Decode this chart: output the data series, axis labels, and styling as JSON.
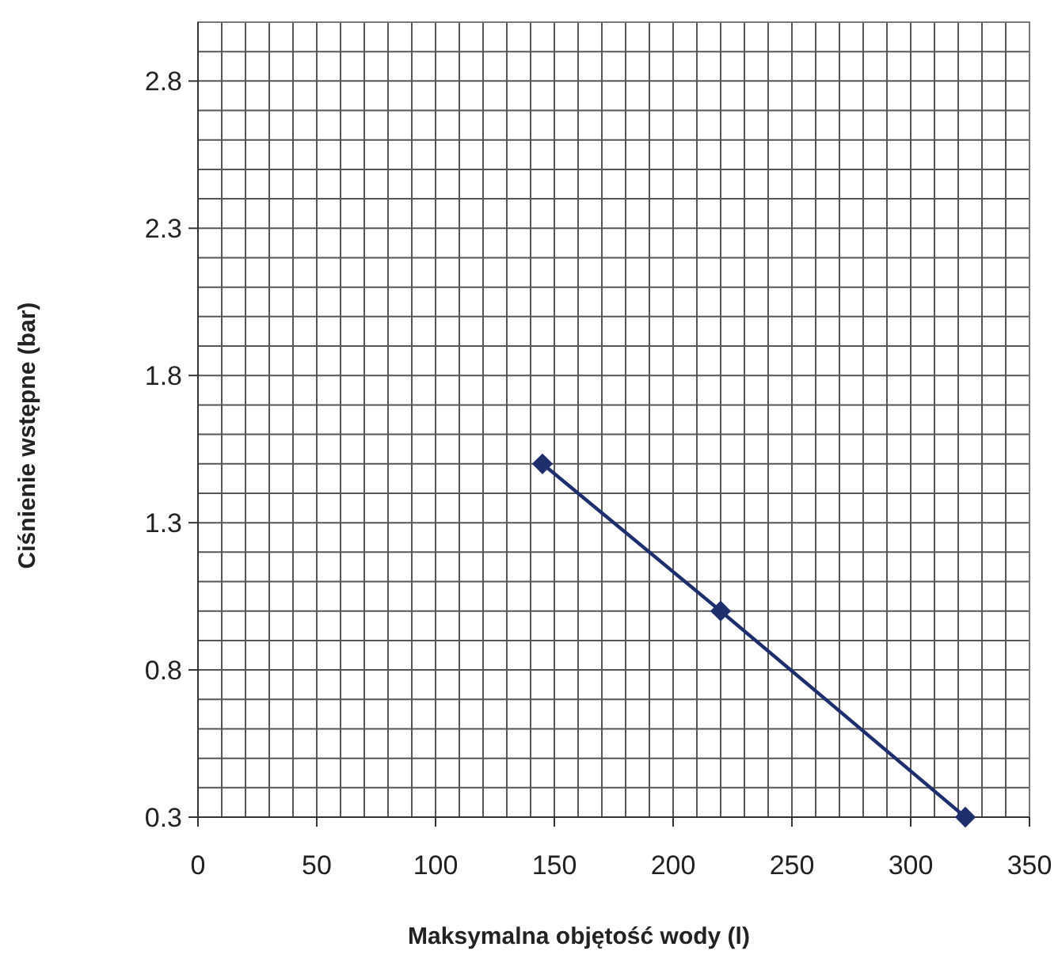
{
  "chart_data": {
    "type": "line",
    "xlabel": "Maksymalna objętość wody (l)",
    "ylabel": "Ciśnienie wstępne (bar)",
    "x": [
      145,
      220,
      323
    ],
    "series": [
      {
        "color": "#1f2f6e",
        "values": [
          1.5,
          1.0,
          0.3
        ]
      }
    ],
    "xlim": [
      0,
      350
    ],
    "xticks": [
      0,
      {
        "value": 10,
        "label": null
      },
      {
        "value": 20,
        "label": null
      },
      {
        "value": 30,
        "label": null
      },
      {
        "value": 40,
        "label": null
      },
      50,
      {
        "value": 60,
        "label": null
      },
      {
        "value": 70,
        "label": null
      },
      {
        "value": 80,
        "label": null
      },
      {
        "value": 90,
        "label": null
      },
      100,
      {
        "value": 110,
        "label": null
      },
      {
        "value": 120,
        "label": null
      },
      {
        "value": 130,
        "label": null
      },
      {
        "value": 140,
        "label": null
      },
      150,
      {
        "value": 160,
        "label": null
      },
      {
        "value": 170,
        "label": null
      },
      {
        "value": 180,
        "label": null
      },
      {
        "value": 190,
        "label": null
      },
      200,
      {
        "value": 210,
        "label": null
      },
      {
        "value": 220,
        "label": null
      },
      {
        "value": 230,
        "label": null
      },
      {
        "value": 240,
        "label": null
      },
      250,
      {
        "value": 260,
        "label": null
      },
      {
        "value": 270,
        "label": null
      },
      {
        "value": 280,
        "label": null
      },
      {
        "value": 290,
        "label": null
      },
      300,
      {
        "value": 310,
        "label": null
      },
      {
        "value": 320,
        "label": null
      },
      {
        "value": 330,
        "label": null
      },
      {
        "value": 340,
        "label": null
      },
      350
    ],
    "ylim": [
      0.3,
      3.0
    ],
    "yticks": [
      0.3,
      {
        "value": 0.4,
        "label": null
      },
      {
        "value": 0.5,
        "label": null
      },
      {
        "value": 0.6,
        "label": null
      },
      {
        "value": 0.7,
        "label": null
      },
      0.8,
      {
        "value": 0.9,
        "label": null
      },
      {
        "value": 1.0,
        "label": null
      },
      {
        "value": 1.1,
        "label": null
      },
      {
        "value": 1.2,
        "label": null
      },
      1.3,
      {
        "value": 1.4,
        "label": null
      },
      {
        "value": 1.5,
        "label": null
      },
      {
        "value": 1.6,
        "label": null
      },
      {
        "value": 1.7,
        "label": null
      },
      1.8,
      {
        "value": 1.9,
        "label": null
      },
      {
        "value": 2.0,
        "label": null
      },
      {
        "value": 2.1,
        "label": null
      },
      {
        "value": 2.2,
        "label": null
      },
      2.3,
      {
        "value": 2.4,
        "label": null
      },
      {
        "value": 2.5,
        "label": null
      },
      {
        "value": 2.6,
        "label": null
      },
      {
        "value": 2.7,
        "label": null
      },
      2.8,
      {
        "value": 2.9,
        "label": null
      },
      {
        "value": 3.0,
        "label": null
      }
    ],
    "grid": true,
    "marker": "diamond",
    "line_style": "solid"
  }
}
